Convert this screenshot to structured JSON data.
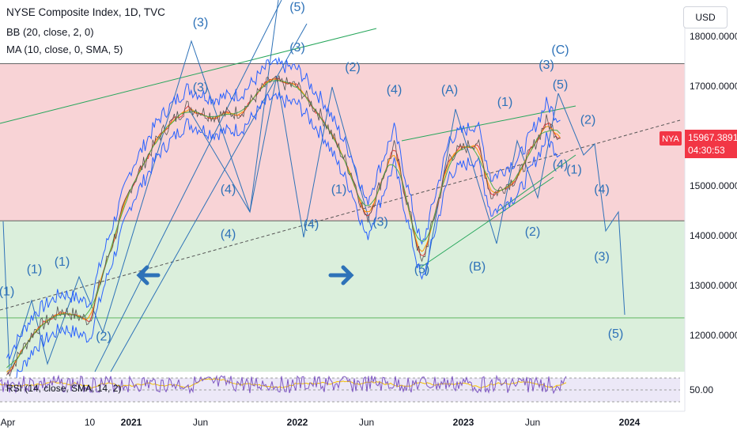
{
  "header": {
    "title": "NYSE Composite Index, 1D, TVC",
    "bb_label": "BB (20, close, 2, 0)",
    "ma_label": "MA (10, close, 0, SMA, 5)",
    "currency": "USD"
  },
  "price_badge": {
    "symbol": "NYA",
    "price": "15967.3891",
    "countdown": "04:30:53"
  },
  "rsi": {
    "legend": "RSI (14, close, SMA, 14, 2)",
    "level_label": "50.00"
  },
  "colors": {
    "resistance_zone": "#f8d3d6",
    "support_zone": "#dbefdc",
    "wave_lines": "#2e72b8",
    "trend_lines": "#26a65b",
    "badge": "#f23645",
    "rsi_line": "#7e57c2",
    "rsi_signal": "#f5c000",
    "ma_lines": [
      "#e53935",
      "#ff9800",
      "#4caf50"
    ]
  },
  "chart_data": {
    "type": "line",
    "title": "NYSE Composite Index, 1D, TVC",
    "price_axis": [
      "18000.0000",
      "17000.0000",
      "16000.0000",
      "15000.0000",
      "14000.0000",
      "13000.0000",
      "12000.0000"
    ],
    "time_axis": [
      "Apr",
      "10",
      "2021",
      "Jun",
      "2022",
      "Jun",
      "2023",
      "Jun",
      "2024"
    ],
    "ylim": [
      11300,
      18400
    ],
    "zones": [
      {
        "name": "resistance",
        "from": 14300,
        "to": 17450
      },
      {
        "name": "support",
        "from": 11300,
        "to": 14300
      }
    ],
    "series": [
      {
        "values": [
          {
            "x": "2020-04",
            "y": 11200
          },
          {
            "x": "2020-06",
            "y": 12100
          },
          {
            "x": "2020-08",
            "y": 12500
          },
          {
            "x": "2020-10",
            "y": 12300
          },
          {
            "x": "2020-11",
            "y": 13300
          },
          {
            "x": "2021-01",
            "y": 15000
          },
          {
            "x": "2021-03",
            "y": 16000
          },
          {
            "x": "2021-05",
            "y": 16600
          },
          {
            "x": "2021-07",
            "y": 16400
          },
          {
            "x": "2021-09",
            "y": 16500
          },
          {
            "x": "2021-11",
            "y": 17100
          },
          {
            "x": "2022-01",
            "y": 17000
          },
          {
            "x": "2022-03",
            "y": 16300
          },
          {
            "x": "2022-05",
            "y": 15200
          },
          {
            "x": "2022-06",
            "y": 14300
          },
          {
            "x": "2022-08",
            "y": 15800
          },
          {
            "x": "2022-10",
            "y": 13400
          },
          {
            "x": "2022-12",
            "y": 15600
          },
          {
            "x": "2023-02",
            "y": 15900
          },
          {
            "x": "2023-03",
            "y": 14800
          },
          {
            "x": "2023-05",
            "y": 15200
          },
          {
            "x": "2023-07",
            "y": 16300
          },
          {
            "x": "2023-08",
            "y": 15967
          }
        ]
      }
    ],
    "wave_labels": [
      {
        "text": "(1)",
        "x": "2020-04",
        "y": 12800
      },
      {
        "text": "(1)",
        "x": "2020-06",
        "y": 13250
      },
      {
        "text": "(1)",
        "x": "2020-08",
        "y": 13400
      },
      {
        "text": "(2)",
        "x": "2020-11",
        "y": 11900
      },
      {
        "text": "(3)",
        "x": "2021-06",
        "y": 18200
      },
      {
        "text": "(3)",
        "x": "2021-06",
        "y": 16900
      },
      {
        "text": "(4)",
        "x": "2021-08",
        "y": 14850
      },
      {
        "text": "(4)",
        "x": "2021-08",
        "y": 13950
      },
      {
        "text": "(5)",
        "x": "2022-01",
        "y": 18600
      },
      {
        "text": "(3)",
        "x": "2022-01",
        "y": 17700
      },
      {
        "text": "(4)",
        "x": "2022-02",
        "y": 14150
      },
      {
        "text": "(1)",
        "x": "2022-04",
        "y": 14850
      },
      {
        "text": "(2)",
        "x": "2022-05",
        "y": 17300
      },
      {
        "text": "(4)",
        "x": "2022-08",
        "y": 16850
      },
      {
        "text": "(3)",
        "x": "2022-07",
        "y": 14200
      },
      {
        "text": "(5)",
        "x": "2022-10",
        "y": 13250
      },
      {
        "text": "(A)",
        "x": "2022-12",
        "y": 16850
      },
      {
        "text": "(B)",
        "x": "2023-02",
        "y": 13300
      },
      {
        "text": "(1)",
        "x": "2023-04",
        "y": 16600
      },
      {
        "text": "(2)",
        "x": "2023-06",
        "y": 14000
      },
      {
        "text": "(3)",
        "x": "2023-07",
        "y": 17350
      },
      {
        "text": "(C)",
        "x": "2023-08",
        "y": 17650
      },
      {
        "text": "(5)",
        "x": "2023-08",
        "y": 16950
      },
      {
        "text": "(4)",
        "x": "2023-08",
        "y": 15350
      },
      {
        "text": "(1)",
        "x": "2023-09",
        "y": 15250
      },
      {
        "text": "(2)",
        "x": "2023-10",
        "y": 16250
      },
      {
        "text": "(4)",
        "x": "2023-11",
        "y": 14850
      },
      {
        "text": "(3)",
        "x": "2023-11",
        "y": 13500
      },
      {
        "text": "(5)",
        "x": "2023-12",
        "y": 11950
      }
    ]
  }
}
